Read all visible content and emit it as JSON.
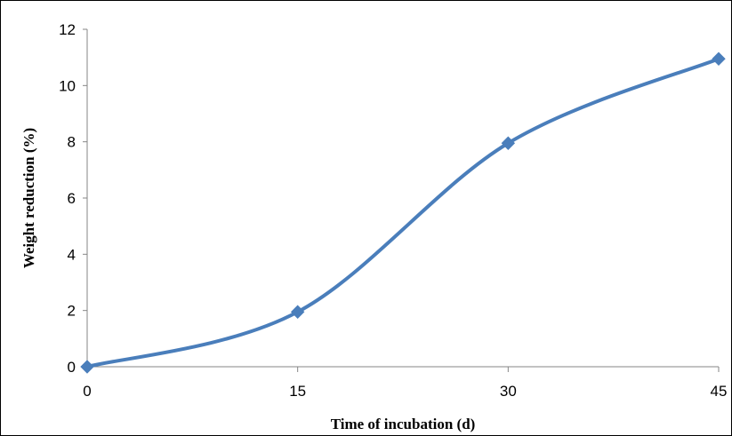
{
  "chart_data": {
    "type": "line",
    "title": "",
    "xlabel": "Time of incubation (d)",
    "ylabel": "Weight reduction (%)",
    "x": [
      0,
      15,
      30,
      45
    ],
    "series": [
      {
        "values": [
          0,
          1.95,
          7.95,
          10.95
        ],
        "color": "#4A7EBB"
      }
    ],
    "xlim": [
      0,
      45
    ],
    "ylim": [
      0,
      12
    ],
    "xticks": [
      "0",
      "15",
      "30",
      "45"
    ],
    "yticks": [
      "0",
      "2",
      "4",
      "6",
      "8",
      "10",
      "12"
    ],
    "smoothed": true,
    "marker": "diamond",
    "grid": false,
    "legend": "none"
  }
}
